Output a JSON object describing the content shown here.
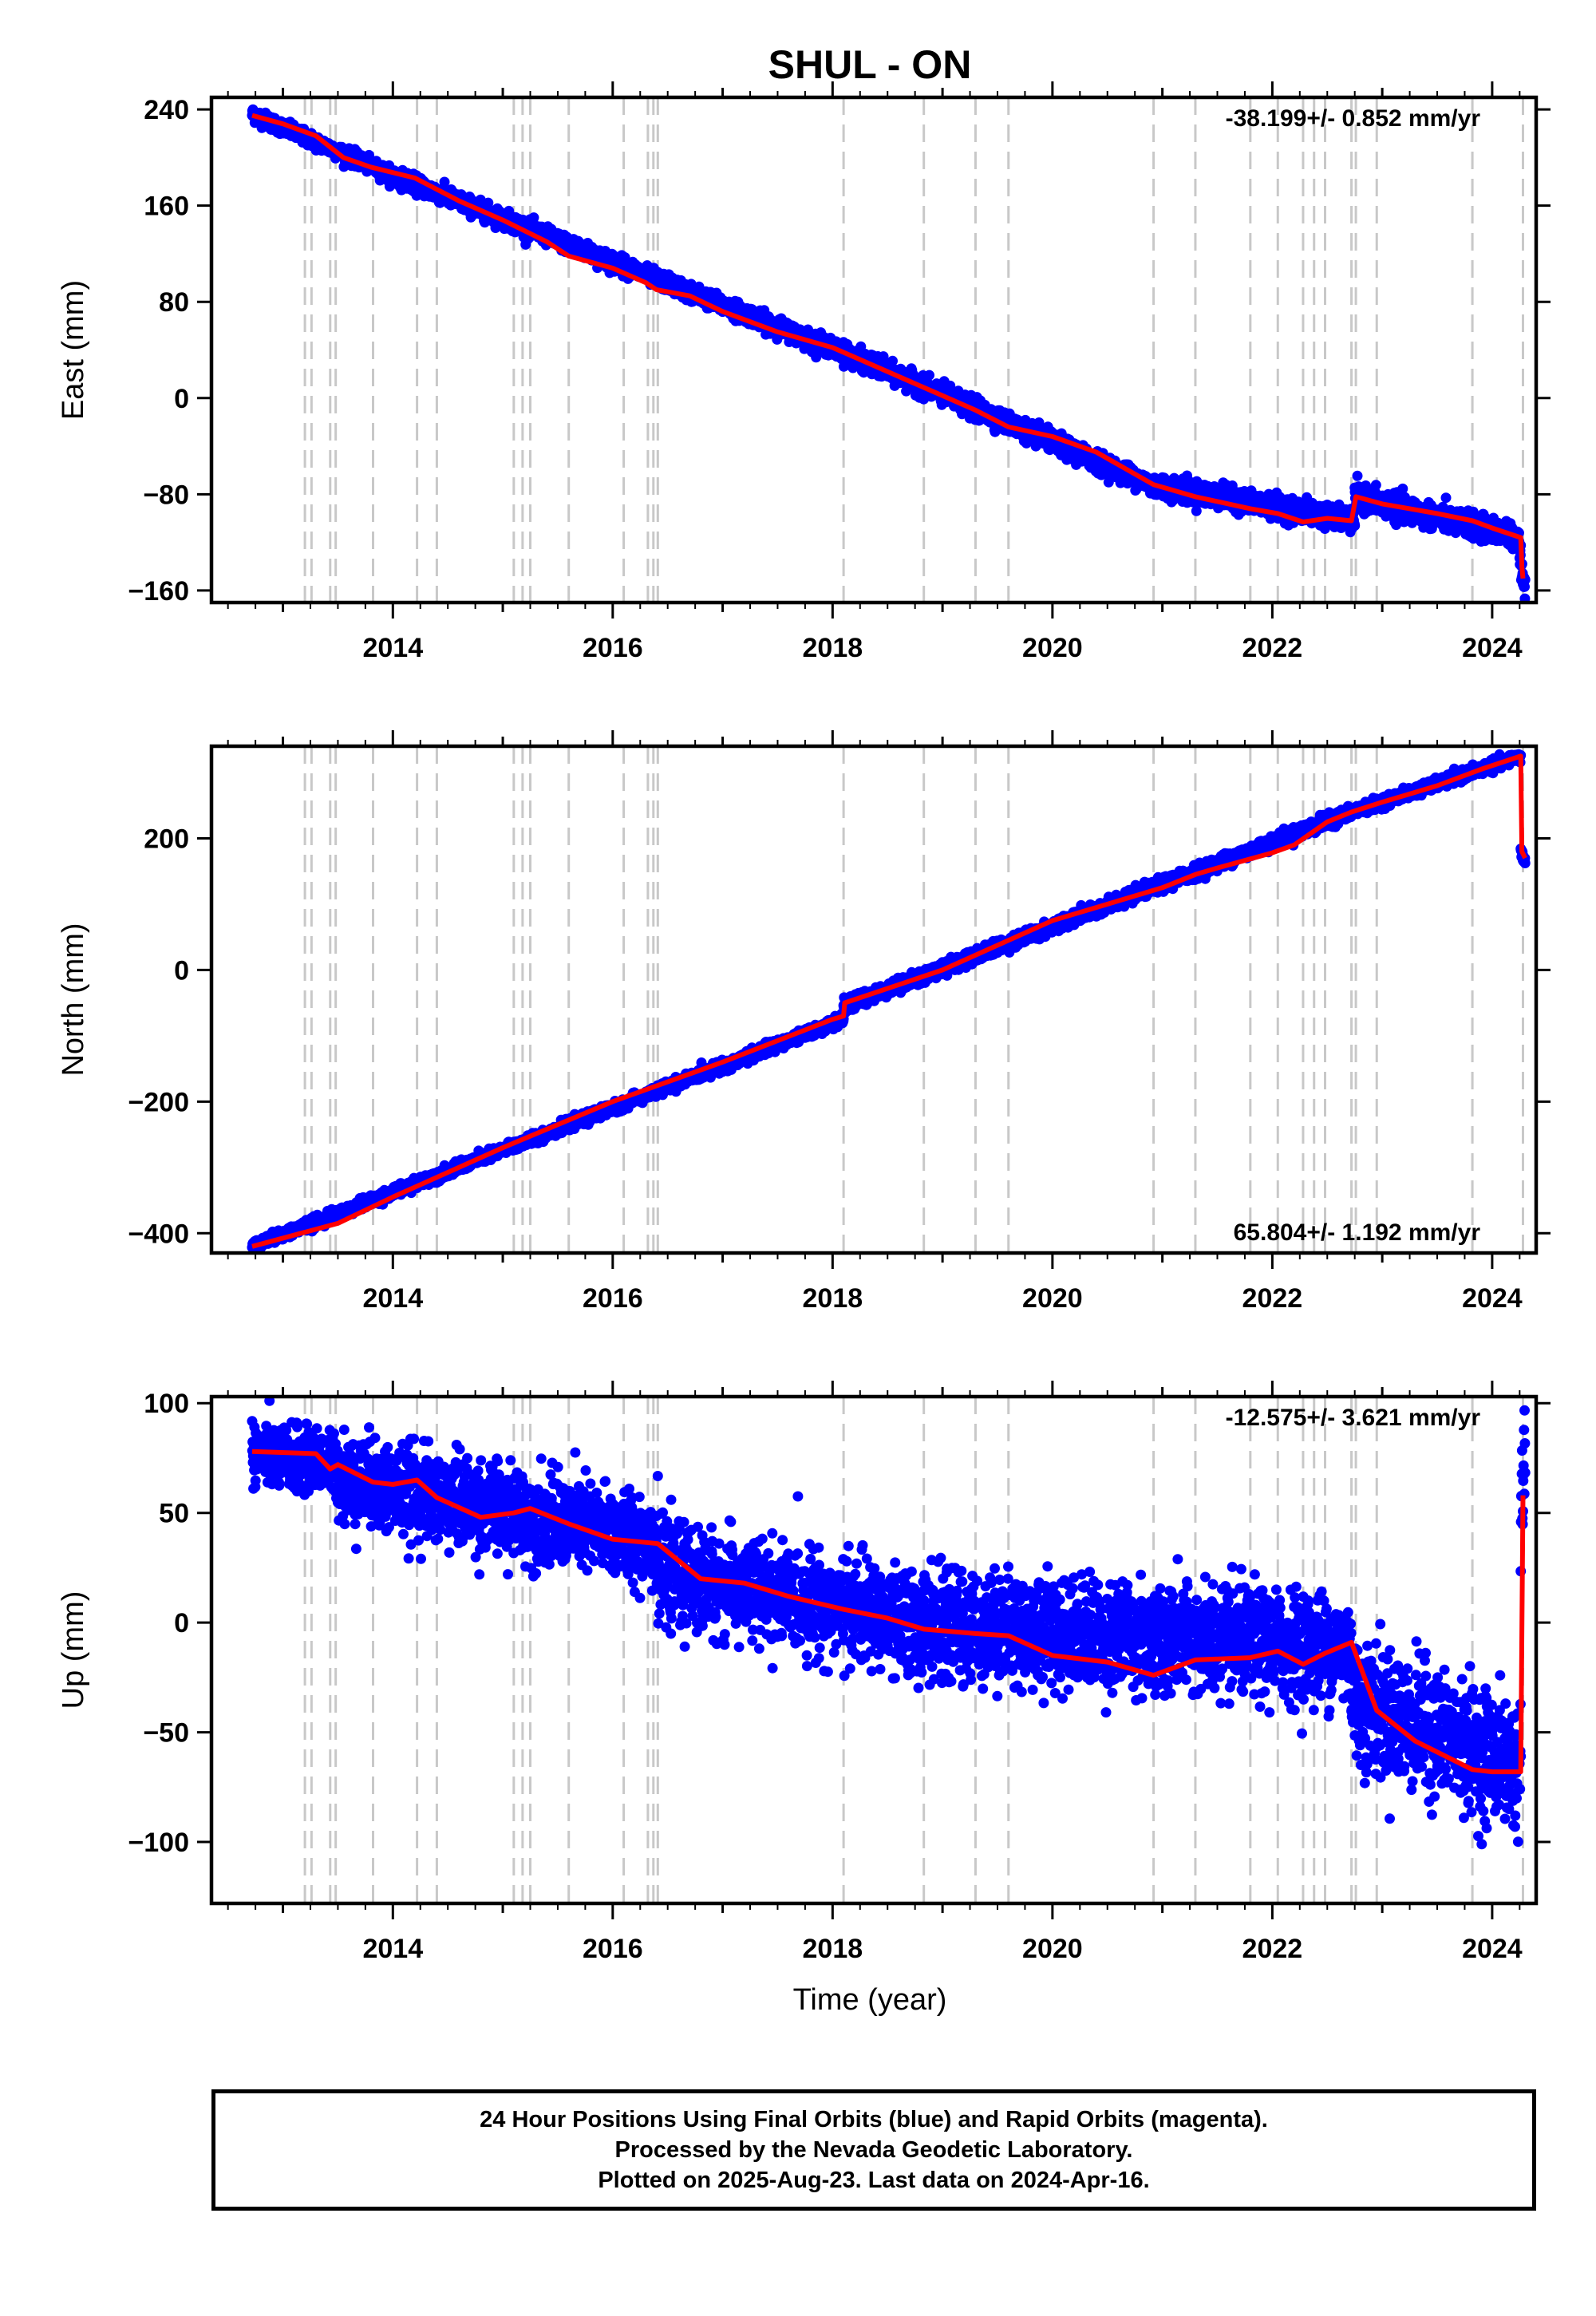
{
  "title": "SHUL - ON",
  "x_axis_label": "Time (year)",
  "footer": {
    "line1": "24 Hour Positions Using Final Orbits (blue) and Rapid Orbits (magenta).",
    "line2": "Processed by the Nevada Geodetic Laboratory.",
    "line3": "Plotted on 2025-Aug-23. Last data on 2024-Apr-16."
  },
  "colors": {
    "data": "#0000ff",
    "model": "#ff0000",
    "event_lines": "#c8c8c8",
    "axes": "#000000"
  },
  "chart_data": [
    {
      "type": "scatter",
      "ylabel": "East (mm)",
      "rate_label": "-38.199+/- 0.852 mm/yr",
      "rate_position": "top-right",
      "xlim": [
        2012.35,
        2024.4
      ],
      "ylim": [
        -170,
        250
      ],
      "xticks": [
        2014,
        2016,
        2018,
        2020,
        2022,
        2024
      ],
      "yticks": [
        240,
        160,
        80,
        0,
        -80,
        -160
      ],
      "ytick_labels": [
        "240",
        "160",
        "80",
        "0",
        "−80",
        "−160"
      ],
      "event_lines_x": [
        2013.2,
        2013.26,
        2013.43,
        2013.48,
        2013.82,
        2014.22,
        2014.4,
        2015.1,
        2015.18,
        2015.25,
        2015.6,
        2016.1,
        2016.32,
        2016.37,
        2016.41,
        2018.1,
        2018.83,
        2019.3,
        2019.6,
        2020.92,
        2021.3,
        2021.8,
        2022.05,
        2022.28,
        2022.38,
        2022.48,
        2022.72,
        2022.76,
        2022.95,
        2023.82,
        2024.28
      ],
      "model_x": [
        2012.72,
        2013.0,
        2013.3,
        2013.55,
        2013.8,
        2014.2,
        2014.6,
        2015.0,
        2015.4,
        2015.6,
        2016.0,
        2016.3,
        2016.4,
        2016.7,
        2017.0,
        2017.5,
        2018.0,
        2018.1,
        2018.5,
        2019.0,
        2019.3,
        2019.6,
        2020.0,
        2020.4,
        2020.92,
        2021.3,
        2021.8,
        2022.05,
        2022.28,
        2022.5,
        2022.72,
        2022.76,
        2023.0,
        2023.5,
        2023.82,
        2024.0,
        2024.26,
        2024.27,
        2024.28
      ],
      "model_y": [
        235,
        228,
        218,
        200,
        192,
        183,
        164,
        148,
        130,
        118,
        108,
        96,
        90,
        85,
        72,
        55,
        42,
        38,
        22,
        2,
        -10,
        -24,
        -32,
        -45,
        -72,
        -82,
        -92,
        -96,
        -103,
        -100,
        -102,
        -82,
        -88,
        -96,
        -102,
        -108,
        -116,
        -140,
        -150
      ],
      "scatter_segments": [
        {
          "x0": 2012.72,
          "x1": 2014.0,
          "y0": 236,
          "y1": 185,
          "spread": 3
        },
        {
          "x0": 2014.0,
          "x1": 2018.1,
          "y0": 185,
          "y1": 38,
          "spread": 3.5
        },
        {
          "x0": 2018.1,
          "x1": 2020.9,
          "y0": 38,
          "y1": -72,
          "spread": 4
        },
        {
          "x0": 2020.9,
          "x1": 2022.75,
          "y0": -72,
          "y1": -102,
          "spread": 4.5
        },
        {
          "x0": 2022.75,
          "x1": 2024.25,
          "y0": -82,
          "y1": -116,
          "spread": 5
        },
        {
          "x0": 2024.25,
          "x1": 2024.3,
          "y0": -130,
          "y1": -160,
          "spread": 6
        }
      ]
    },
    {
      "type": "scatter",
      "ylabel": "North (mm)",
      "rate_label": "65.804+/- 1.192 mm/yr",
      "rate_position": "bottom-right",
      "xlim": [
        2012.35,
        2024.4
      ],
      "ylim": [
        -430,
        340
      ],
      "xticks": [
        2014,
        2016,
        2018,
        2020,
        2022,
        2024
      ],
      "yticks": [
        200,
        0,
        -200,
        -400
      ],
      "ytick_labels": [
        "200",
        "0",
        "−200",
        "−400"
      ],
      "event_lines_x": [
        2013.2,
        2013.26,
        2013.43,
        2013.48,
        2013.82,
        2014.22,
        2014.4,
        2015.1,
        2015.18,
        2015.25,
        2015.6,
        2016.1,
        2016.32,
        2016.37,
        2016.41,
        2018.1,
        2018.83,
        2019.3,
        2019.6,
        2020.92,
        2021.3,
        2021.8,
        2022.05,
        2022.28,
        2022.38,
        2022.48,
        2022.72,
        2022.76,
        2022.95,
        2023.82,
        2024.28
      ],
      "model_x": [
        2012.72,
        2013.5,
        2014.0,
        2015.0,
        2016.0,
        2017.0,
        2018.0,
        2018.1,
        2018.11,
        2019.0,
        2020.0,
        2021.0,
        2021.3,
        2021.5,
        2022.0,
        2022.2,
        2022.5,
        2022.72,
        2023.0,
        2023.5,
        2023.9,
        2024.26,
        2024.27,
        2024.3
      ],
      "model_y": [
        -420,
        -385,
        -345,
        -270,
        -200,
        -140,
        -75,
        -70,
        -50,
        0,
        75,
        125,
        145,
        155,
        178,
        190,
        225,
        240,
        255,
        280,
        305,
        325,
        180,
        170
      ],
      "scatter_segments": [
        {
          "x0": 2012.72,
          "x1": 2018.1,
          "y0": -420,
          "y1": -75,
          "spread": 4
        },
        {
          "x0": 2018.1,
          "x1": 2022.72,
          "y0": -55,
          "y1": 240,
          "spread": 5
        },
        {
          "x0": 2022.72,
          "x1": 2024.26,
          "y0": 240,
          "y1": 325,
          "spread": 4
        },
        {
          "x0": 2024.26,
          "x1": 2024.3,
          "y0": 180,
          "y1": 165,
          "spread": 4
        }
      ]
    },
    {
      "type": "scatter",
      "ylabel": "Up (mm)",
      "rate_label": "-12.575+/- 3.621 mm/yr",
      "rate_position": "top-right",
      "xlim": [
        2012.35,
        2024.4
      ],
      "ylim": [
        -128,
        103
      ],
      "xticks": [
        2014,
        2016,
        2018,
        2020,
        2022,
        2024
      ],
      "yticks": [
        100,
        50,
        0,
        -50,
        -100
      ],
      "ytick_labels": [
        "100",
        "50",
        "0",
        "−50",
        "−100"
      ],
      "event_lines_x": [
        2013.2,
        2013.26,
        2013.43,
        2013.48,
        2013.82,
        2014.22,
        2014.4,
        2015.1,
        2015.18,
        2015.25,
        2015.6,
        2016.1,
        2016.32,
        2016.37,
        2016.41,
        2018.1,
        2018.83,
        2019.3,
        2019.6,
        2020.92,
        2021.3,
        2021.8,
        2022.05,
        2022.28,
        2022.38,
        2022.48,
        2022.72,
        2022.76,
        2022.95,
        2023.82,
        2024.28
      ],
      "model_x": [
        2012.72,
        2013.3,
        2013.43,
        2013.5,
        2013.82,
        2014.0,
        2014.22,
        2014.4,
        2014.8,
        2015.1,
        2015.25,
        2015.6,
        2016.0,
        2016.41,
        2016.8,
        2017.2,
        2017.6,
        2018.1,
        2018.5,
        2018.83,
        2019.3,
        2019.6,
        2020.0,
        2020.5,
        2020.92,
        2021.3,
        2021.8,
        2022.05,
        2022.28,
        2022.48,
        2022.72,
        2022.95,
        2023.3,
        2023.82,
        2024.0,
        2024.26,
        2024.28
      ],
      "model_y": [
        78,
        77,
        70,
        72,
        64,
        63,
        65,
        57,
        48,
        50,
        52,
        45,
        38,
        36,
        20,
        18,
        12,
        6,
        2,
        -3,
        -5,
        -6,
        -15,
        -18,
        -24,
        -17,
        -16,
        -13,
        -19,
        -14,
        -9,
        -40,
        -54,
        -67,
        -68,
        -68,
        58
      ],
      "scatter_segments": [
        {
          "x0": 2012.72,
          "x1": 2013.5,
          "y0": 77,
          "y1": 72,
          "spread": 7
        },
        {
          "x0": 2013.5,
          "x1": 2016.41,
          "y0": 66,
          "y1": 37,
          "spread": 10
        },
        {
          "x0": 2016.41,
          "x1": 2018.5,
          "y0": 22,
          "y1": 3,
          "spread": 11
        },
        {
          "x0": 2018.5,
          "x1": 2022.72,
          "y0": 0,
          "y1": -12,
          "spread": 12
        },
        {
          "x0": 2022.72,
          "x1": 2024.26,
          "y0": -35,
          "y1": -66,
          "spread": 14
        },
        {
          "x0": 2024.26,
          "x1": 2024.3,
          "y0": 40,
          "y1": 85,
          "spread": 15
        }
      ]
    }
  ]
}
